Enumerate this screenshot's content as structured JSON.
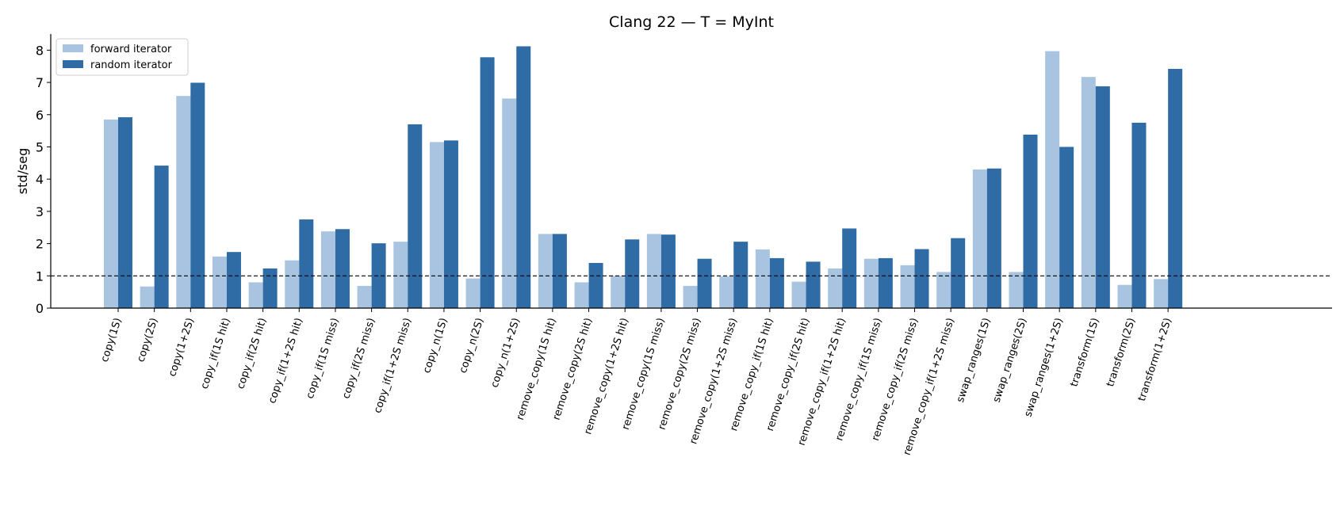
{
  "chart_data": {
    "type": "grouped_bar",
    "title": "Clang 22 — T = MyInt",
    "y_label": "std/seg",
    "categories": [
      "copy(1S)",
      "copy(2S)",
      "copy(1+2S)",
      "copy_if(1S hit)",
      "copy_if(2S hit)",
      "copy_if(1+2S hit)",
      "copy_if(1S miss)",
      "copy_if(2S miss)",
      "copy_if(1+2S miss)",
      "copy_n(1S)",
      "copy_n(2S)",
      "copy_n(1+2S)",
      "remove_copy(1S hit)",
      "remove_copy(2S hit)",
      "remove_copy(1+2S hit)",
      "remove_copy(1S miss)",
      "remove_copy(2S miss)",
      "remove_copy(1+2S miss)",
      "remove_copy_if(1S hit)",
      "remove_copy_if(2S hit)",
      "remove_copy_if(1+2S hit)",
      "remove_copy_if(1S miss)",
      "remove_copy_if(2S miss)",
      "remove_copy_if(1+2S miss)",
      "swap_ranges(1S)",
      "swap_ranges(2S)",
      "swap_ranges(1+2S)",
      "transform(1S)",
      "transform(2S)",
      "transform(1+2S)"
    ],
    "series": [
      {
        "name": "forward iterator",
        "color": "#a9c4e0",
        "values": [
          5.85,
          0.67,
          6.58,
          1.6,
          0.8,
          1.48,
          2.38,
          0.69,
          2.06,
          5.15,
          0.92,
          6.5,
          2.3,
          0.8,
          1.0,
          2.3,
          0.69,
          0.98,
          1.82,
          0.82,
          1.23,
          1.53,
          1.33,
          1.12,
          4.3,
          1.12,
          7.97,
          7.17,
          0.72,
          0.9
        ]
      },
      {
        "name": "random iterator",
        "color": "#2f6ba5",
        "values": [
          5.92,
          4.42,
          6.99,
          1.74,
          1.23,
          2.75,
          2.45,
          2.01,
          5.7,
          5.2,
          7.78,
          8.12,
          2.3,
          1.4,
          2.13,
          2.28,
          1.53,
          2.06,
          1.55,
          1.44,
          2.47,
          1.55,
          1.83,
          2.17,
          4.33,
          5.38,
          5.0,
          6.88,
          5.75,
          7.42
        ]
      }
    ],
    "ylim": [
      0,
      8.5
    ],
    "yticks": [
      0,
      1,
      2,
      3,
      4,
      5,
      6,
      7,
      8
    ],
    "reference_line": 1,
    "legend": "upper-left"
  }
}
